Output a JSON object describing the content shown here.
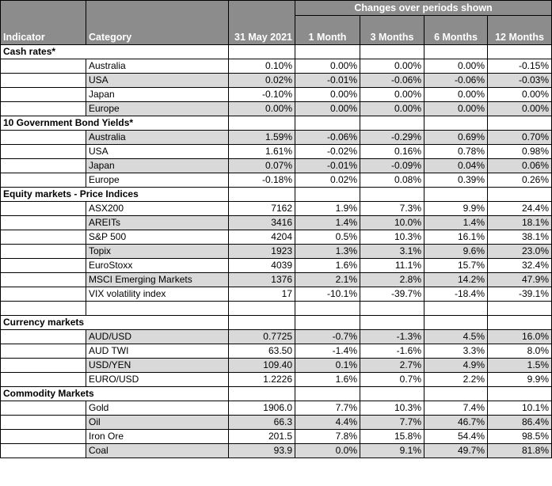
{
  "header": {
    "changes_title": "Changes over periods shown",
    "columns": [
      "Indicator",
      "Category",
      "31 May 2021",
      "1 Month",
      "3 Months",
      "6 Months",
      "12 Months"
    ]
  },
  "sections": [
    {
      "title": "Cash rates*",
      "rows": [
        {
          "category": "Australia",
          "values": [
            "0.10%",
            "0.00%",
            "0.00%",
            "0.00%",
            "-0.15%"
          ],
          "shaded": false
        },
        {
          "category": "USA",
          "values": [
            "0.02%",
            "-0.01%",
            "-0.06%",
            "-0.06%",
            "-0.03%"
          ],
          "shaded": true
        },
        {
          "category": "Japan",
          "values": [
            "-0.10%",
            "0.00%",
            "0.00%",
            "0.00%",
            "0.00%"
          ],
          "shaded": false
        },
        {
          "category": "Europe",
          "values": [
            "0.00%",
            "0.00%",
            "0.00%",
            "0.00%",
            "0.00%"
          ],
          "shaded": true
        }
      ]
    },
    {
      "title": "10 Government Bond Yields*",
      "rows": [
        {
          "category": "Australia",
          "values": [
            "1.59%",
            "-0.06%",
            "-0.29%",
            "0.69%",
            "0.70%"
          ],
          "shaded": true
        },
        {
          "category": "USA",
          "values": [
            "1.61%",
            "-0.02%",
            "0.16%",
            "0.78%",
            "0.98%"
          ],
          "shaded": false
        },
        {
          "category": "Japan",
          "values": [
            "0.07%",
            "-0.01%",
            "-0.09%",
            "0.04%",
            "0.06%"
          ],
          "shaded": true
        },
        {
          "category": "Europe",
          "values": [
            "-0.18%",
            "0.02%",
            "0.08%",
            "0.39%",
            "0.26%"
          ],
          "shaded": false
        }
      ]
    },
    {
      "title": "Equity markets - Price Indices",
      "rows": [
        {
          "category": "ASX200",
          "values": [
            "7162",
            "1.9%",
            "7.3%",
            "9.9%",
            "24.4%"
          ],
          "shaded": false
        },
        {
          "category": "AREITs",
          "values": [
            "3416",
            "1.4%",
            "10.0%",
            "1.4%",
            "18.1%"
          ],
          "shaded": true
        },
        {
          "category": "S&P 500",
          "values": [
            "4204",
            "0.5%",
            "10.3%",
            "16.1%",
            "38.1%"
          ],
          "shaded": false
        },
        {
          "category": "Topix",
          "values": [
            "1923",
            "1.3%",
            "3.1%",
            "9.6%",
            "23.0%"
          ],
          "shaded": true
        },
        {
          "category": "EuroStoxx",
          "values": [
            "4039",
            "1.6%",
            "11.1%",
            "15.7%",
            "32.4%"
          ],
          "shaded": false
        },
        {
          "category": "MSCI Emerging Markets",
          "values": [
            "1376",
            "2.1%",
            "2.8%",
            "14.2%",
            "47.9%"
          ],
          "shaded": true
        },
        {
          "category": "VIX volatility index",
          "values": [
            "17",
            "-10.1%",
            "-39.7%",
            "-18.4%",
            "-39.1%"
          ],
          "shaded": false
        }
      ],
      "trailing_blank": true
    },
    {
      "title": "Currency markets",
      "rows": [
        {
          "category": "AUD/USD",
          "values": [
            "0.7725",
            "-0.7%",
            "-1.3%",
            "4.5%",
            "16.0%"
          ],
          "shaded": true
        },
        {
          "category": "AUD TWI",
          "values": [
            "63.50",
            "-1.4%",
            "-1.6%",
            "3.3%",
            "8.0%"
          ],
          "shaded": false
        },
        {
          "category": "USD/YEN",
          "values": [
            "109.40",
            "0.1%",
            "2.7%",
            "4.9%",
            "1.5%"
          ],
          "shaded": true
        },
        {
          "category": "EURO/USD",
          "values": [
            "1.2226",
            "1.6%",
            "0.7%",
            "2.2%",
            "9.9%"
          ],
          "shaded": false
        }
      ]
    },
    {
      "title": "Commodity Markets",
      "rows": [
        {
          "category": "Gold",
          "values": [
            "1906.0",
            "7.7%",
            "10.3%",
            "7.4%",
            "10.1%"
          ],
          "shaded": false
        },
        {
          "category": "Oil",
          "values": [
            "66.3",
            "4.4%",
            "7.7%",
            "46.7%",
            "86.4%"
          ],
          "shaded": true
        },
        {
          "category": "Iron Ore",
          "values": [
            "201.5",
            "7.8%",
            "15.8%",
            "54.4%",
            "98.5%"
          ],
          "shaded": false
        },
        {
          "category": "Coal",
          "values": [
            "93.9",
            "0.0%",
            "9.1%",
            "49.7%",
            "81.8%"
          ],
          "shaded": true
        }
      ]
    }
  ]
}
